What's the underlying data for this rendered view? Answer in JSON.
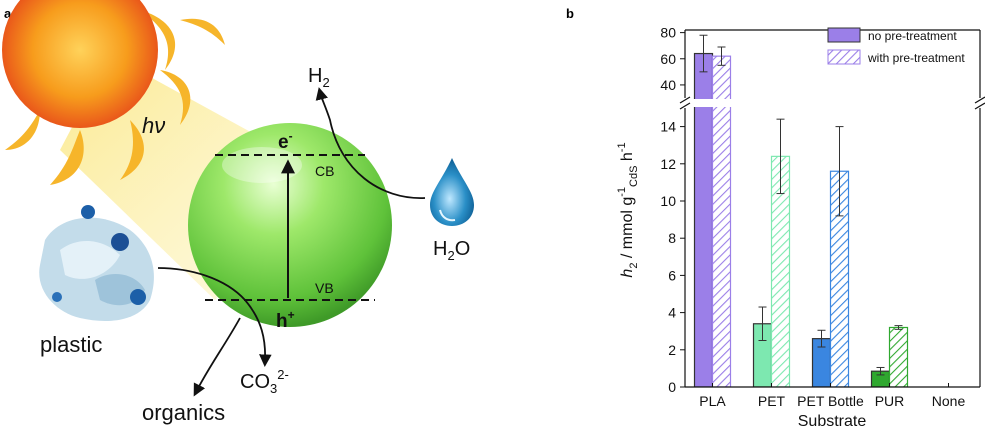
{
  "panel_a": {
    "letter": "a",
    "light_label": "hν",
    "electron_label": "e",
    "electron_sup": "-",
    "hole_label": "h",
    "hole_sup": "+",
    "cb_label": "CB",
    "vb_label": "VB",
    "h2_main": "H",
    "h2_sub": "2",
    "water_h": "H",
    "water_sub": "2",
    "water_o": "O",
    "plastic_label": "plastic",
    "organics_label": "organics",
    "co3_main": "CO",
    "co3_sub": "3",
    "co3_sup": "2-",
    "colors": {
      "sun": "#f6a21a",
      "beam": "#f7f0a0",
      "sphere": "#74d84a",
      "drop": "#2a8fc7"
    }
  },
  "panel_b": {
    "letter": "b",
    "ylabel_h": "h",
    "ylabel_h_sub": "2",
    "ylabel_rest": " / mmol g",
    "ylabel_g_sup": "-1",
    "ylabel_g_sub": "CdS",
    "ylabel_h_sup": "-1"
  },
  "chart_data": {
    "type": "bar",
    "xlabel": "Substrate",
    "categories": [
      "PLA",
      "PET",
      "PET Bottle",
      "PUR",
      "None"
    ],
    "y_ticks_lower": [
      0,
      2,
      4,
      6,
      8,
      10,
      12,
      14
    ],
    "y_ticks_upper": [
      40,
      60,
      80
    ],
    "ylim_lower": [
      0,
      15
    ],
    "ylim_upper": [
      30,
      82
    ],
    "axis_break": true,
    "legend_position": "top-right",
    "series": [
      {
        "name": "no pre-treatment",
        "pattern": "solid",
        "values": [
          64,
          3.4,
          2.6,
          0.85,
          0
        ],
        "errors": [
          14,
          0.9,
          0.45,
          0.2,
          0
        ],
        "colors": [
          "#9b7fe8",
          "#7de8b0",
          "#3a86e0",
          "#2fa82f",
          "#ffffff"
        ]
      },
      {
        "name": "with pre-treatment",
        "pattern": "hatched",
        "values": [
          62,
          12.4,
          11.6,
          3.2,
          0
        ],
        "errors": [
          7,
          2.0,
          2.4,
          0.1,
          0
        ],
        "colors": [
          "#9b7fe8",
          "#7de8b0",
          "#3a86e0",
          "#2fa82f",
          "#ffffff"
        ]
      }
    ]
  }
}
